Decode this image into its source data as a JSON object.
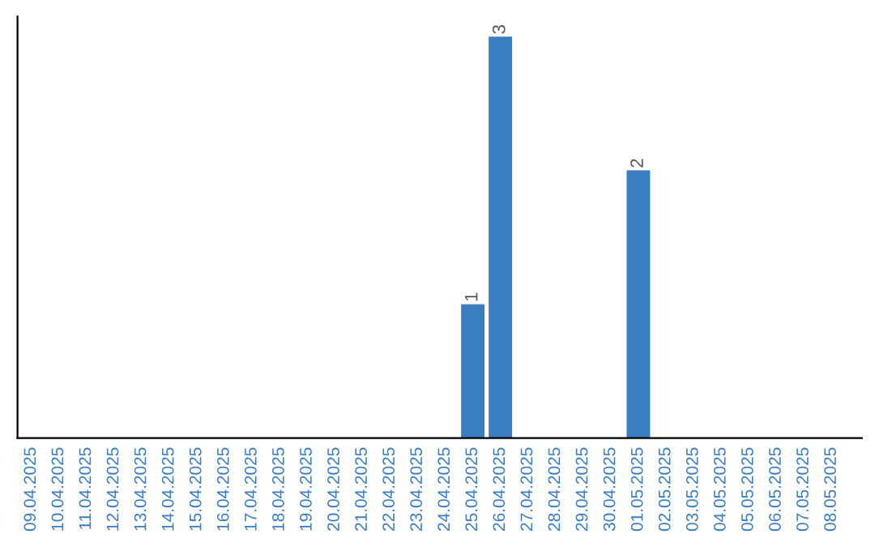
{
  "chart_data": {
    "type": "bar",
    "categories": [
      "09.04.2025",
      "10.04.2025",
      "11.04.2025",
      "12.04.2025",
      "13.04.2025",
      "14.04.2025",
      "15.04.2025",
      "16.04.2025",
      "17.04.2025",
      "18.04.2025",
      "19.04.2025",
      "20.04.2025",
      "21.04.2025",
      "22.04.2025",
      "23.04.2025",
      "24.04.2025",
      "25.04.2025",
      "26.04.2025",
      "27.04.2025",
      "28.04.2025",
      "29.04.2025",
      "30.04.2025",
      "01.05.2025",
      "02.05.2025",
      "03.05.2025",
      "04.05.2025",
      "05.05.2025",
      "06.05.2025",
      "07.05.2025",
      "08.05.2025"
    ],
    "values": [
      null,
      null,
      null,
      null,
      null,
      null,
      null,
      null,
      null,
      null,
      null,
      null,
      null,
      null,
      null,
      null,
      1,
      3,
      null,
      null,
      null,
      null,
      2,
      null,
      null,
      null,
      null,
      null,
      null,
      null
    ],
    "data_labels": true,
    "color": "#3a7dc3",
    "tick_labels": "x",
    "grid": false
  }
}
